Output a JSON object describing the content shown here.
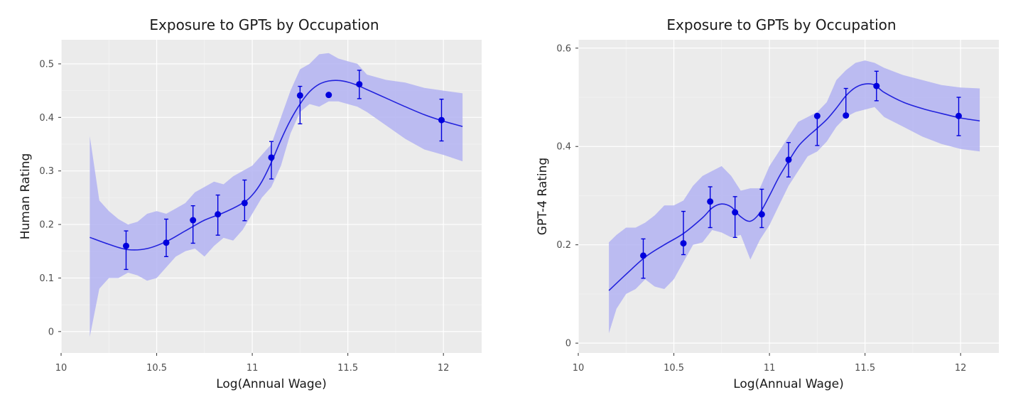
{
  "chart_data": [
    {
      "type": "line",
      "title": "Exposure to GPTs by Occupation",
      "xlabel": "Log(Annual Wage)",
      "ylabel": "Human Rating",
      "xlim": [
        10,
        12.2
      ],
      "ylim": [
        -0.04,
        0.545
      ],
      "xticks": [
        10,
        10.5,
        11,
        11.5,
        12
      ],
      "xtick_labels": [
        "10",
        "10.5",
        "11",
        "11.5",
        "12"
      ],
      "yticks": [
        0,
        0.1,
        0.2,
        0.3,
        0.4,
        0.5
      ],
      "ytick_labels": [
        "0",
        "0.1",
        "0.2",
        "0.3",
        "0.4",
        "0.5"
      ],
      "grid": true,
      "colors": {
        "line": "#2222dd",
        "band": "#b3b3f2",
        "points": "#0000dd"
      },
      "points": [
        {
          "x": 10.34,
          "y": 0.16,
          "lo": 0.116,
          "hi": 0.188
        },
        {
          "x": 10.55,
          "y": 0.166,
          "lo": 0.14,
          "hi": 0.21
        },
        {
          "x": 10.69,
          "y": 0.208,
          "lo": 0.165,
          "hi": 0.235
        },
        {
          "x": 10.82,
          "y": 0.219,
          "lo": 0.18,
          "hi": 0.255
        },
        {
          "x": 10.96,
          "y": 0.24,
          "lo": 0.207,
          "hi": 0.283
        },
        {
          "x": 11.1,
          "y": 0.325,
          "lo": 0.285,
          "hi": 0.355
        },
        {
          "x": 11.25,
          "y": 0.441,
          "lo": 0.388,
          "hi": 0.458
        },
        {
          "x": 11.4,
          "y": 0.442,
          "lo": null,
          "hi": null
        },
        {
          "x": 11.56,
          "y": 0.462,
          "lo": 0.435,
          "hi": 0.488
        },
        {
          "x": 11.99,
          "y": 0.395,
          "lo": 0.356,
          "hi": 0.434
        }
      ],
      "fit": {
        "x": [
          10.15,
          10.25,
          10.35,
          10.45,
          10.55,
          10.65,
          10.75,
          10.85,
          10.95,
          11.0,
          11.05,
          11.1,
          11.15,
          11.2,
          11.25,
          11.3,
          11.35,
          11.4,
          11.45,
          11.5,
          11.55,
          11.6,
          11.7,
          11.8,
          11.9,
          12.0,
          12.1
        ],
        "y": [
          0.176,
          0.163,
          0.153,
          0.155,
          0.168,
          0.188,
          0.208,
          0.222,
          0.24,
          0.255,
          0.28,
          0.316,
          0.358,
          0.395,
          0.425,
          0.448,
          0.462,
          0.468,
          0.469,
          0.466,
          0.46,
          0.452,
          0.436,
          0.42,
          0.405,
          0.393,
          0.383
        ]
      },
      "band": {
        "x": [
          10.15,
          10.2,
          10.25,
          10.3,
          10.35,
          10.4,
          10.45,
          10.5,
          10.55,
          10.6,
          10.65,
          10.7,
          10.75,
          10.8,
          10.85,
          10.9,
          10.95,
          11.0,
          11.05,
          11.1,
          11.15,
          11.2,
          11.25,
          11.3,
          11.35,
          11.4,
          11.45,
          11.5,
          11.55,
          11.6,
          11.7,
          11.8,
          11.9,
          12.0,
          12.1
        ],
        "lower": [
          -0.01,
          0.08,
          0.1,
          0.1,
          0.11,
          0.105,
          0.095,
          0.1,
          0.12,
          0.14,
          0.15,
          0.155,
          0.14,
          0.16,
          0.175,
          0.17,
          0.19,
          0.22,
          0.25,
          0.27,
          0.31,
          0.37,
          0.41,
          0.425,
          0.42,
          0.43,
          0.43,
          0.425,
          0.42,
          0.41,
          0.385,
          0.36,
          0.34,
          0.33,
          0.318
        ],
        "upper": [
          0.365,
          0.245,
          0.225,
          0.21,
          0.2,
          0.205,
          0.22,
          0.225,
          0.22,
          0.23,
          0.24,
          0.26,
          0.27,
          0.28,
          0.275,
          0.29,
          0.3,
          0.31,
          0.33,
          0.35,
          0.4,
          0.45,
          0.49,
          0.5,
          0.518,
          0.52,
          0.51,
          0.505,
          0.5,
          0.48,
          0.47,
          0.465,
          0.455,
          0.45,
          0.445
        ]
      }
    },
    {
      "type": "line",
      "title": "Exposure to GPTs by Occupation",
      "xlabel": "Log(Annual Wage)",
      "ylabel": "GPT-4 Rating",
      "xlim": [
        10,
        12.2
      ],
      "ylim": [
        -0.02,
        0.617
      ],
      "xticks": [
        10,
        10.5,
        11,
        11.5,
        12
      ],
      "xtick_labels": [
        "10",
        "10.5",
        "11",
        "11.5",
        "12"
      ],
      "yticks": [
        0,
        0.2,
        0.4,
        0.6
      ],
      "ytick_labels": [
        "0",
        "0.2",
        "0.4",
        "0.6"
      ],
      "grid": true,
      "colors": {
        "line": "#2222dd",
        "band": "#b3b3f2",
        "points": "#0000dd"
      },
      "points": [
        {
          "x": 10.34,
          "y": 0.178,
          "lo": 0.132,
          "hi": 0.212
        },
        {
          "x": 10.55,
          "y": 0.203,
          "lo": 0.18,
          "hi": 0.268
        },
        {
          "x": 10.69,
          "y": 0.288,
          "lo": 0.235,
          "hi": 0.318
        },
        {
          "x": 10.82,
          "y": 0.266,
          "lo": 0.215,
          "hi": 0.298
        },
        {
          "x": 10.96,
          "y": 0.262,
          "lo": 0.235,
          "hi": 0.313
        },
        {
          "x": 11.1,
          "y": 0.373,
          "lo": 0.338,
          "hi": 0.408
        },
        {
          "x": 11.25,
          "y": 0.462,
          "lo": 0.402,
          "hi": null
        },
        {
          "x": 11.4,
          "y": 0.463,
          "lo": null,
          "hi": 0.518
        },
        {
          "x": 11.56,
          "y": 0.523,
          "lo": 0.493,
          "hi": 0.553
        },
        {
          "x": 11.99,
          "y": 0.462,
          "lo": 0.422,
          "hi": 0.5
        }
      ],
      "fit": {
        "x": [
          10.16,
          10.25,
          10.35,
          10.45,
          10.55,
          10.65,
          10.7,
          10.75,
          10.8,
          10.85,
          10.9,
          10.95,
          11.0,
          11.05,
          11.1,
          11.15,
          11.2,
          11.25,
          11.3,
          11.35,
          11.4,
          11.45,
          11.5,
          11.55,
          11.6,
          11.7,
          11.8,
          11.9,
          12.0,
          12.1
        ],
        "y": [
          0.107,
          0.14,
          0.175,
          0.2,
          0.223,
          0.255,
          0.275,
          0.283,
          0.277,
          0.257,
          0.248,
          0.265,
          0.3,
          0.338,
          0.37,
          0.4,
          0.42,
          0.437,
          0.455,
          0.478,
          0.503,
          0.52,
          0.527,
          0.525,
          0.51,
          0.49,
          0.477,
          0.467,
          0.458,
          0.452
        ]
      },
      "band": {
        "x": [
          10.16,
          10.2,
          10.25,
          10.3,
          10.35,
          10.4,
          10.45,
          10.5,
          10.55,
          10.6,
          10.65,
          10.7,
          10.75,
          10.8,
          10.85,
          10.9,
          10.95,
          11.0,
          11.05,
          11.1,
          11.15,
          11.2,
          11.25,
          11.3,
          11.35,
          11.4,
          11.45,
          11.5,
          11.55,
          11.6,
          11.7,
          11.8,
          11.9,
          12.0,
          12.1
        ],
        "lower": [
          0.02,
          0.07,
          0.1,
          0.11,
          0.13,
          0.115,
          0.11,
          0.13,
          0.165,
          0.2,
          0.205,
          0.23,
          0.225,
          0.215,
          0.22,
          0.17,
          0.21,
          0.24,
          0.28,
          0.32,
          0.35,
          0.38,
          0.39,
          0.41,
          0.44,
          0.46,
          0.47,
          0.475,
          0.48,
          0.46,
          0.44,
          0.42,
          0.405,
          0.395,
          0.39
        ],
        "upper": [
          0.205,
          0.22,
          0.235,
          0.235,
          0.245,
          0.26,
          0.28,
          0.28,
          0.29,
          0.32,
          0.34,
          0.35,
          0.36,
          0.34,
          0.31,
          0.315,
          0.315,
          0.36,
          0.39,
          0.42,
          0.45,
          0.46,
          0.47,
          0.49,
          0.535,
          0.555,
          0.57,
          0.575,
          0.57,
          0.56,
          0.545,
          0.535,
          0.525,
          0.52,
          0.518
        ]
      }
    }
  ]
}
